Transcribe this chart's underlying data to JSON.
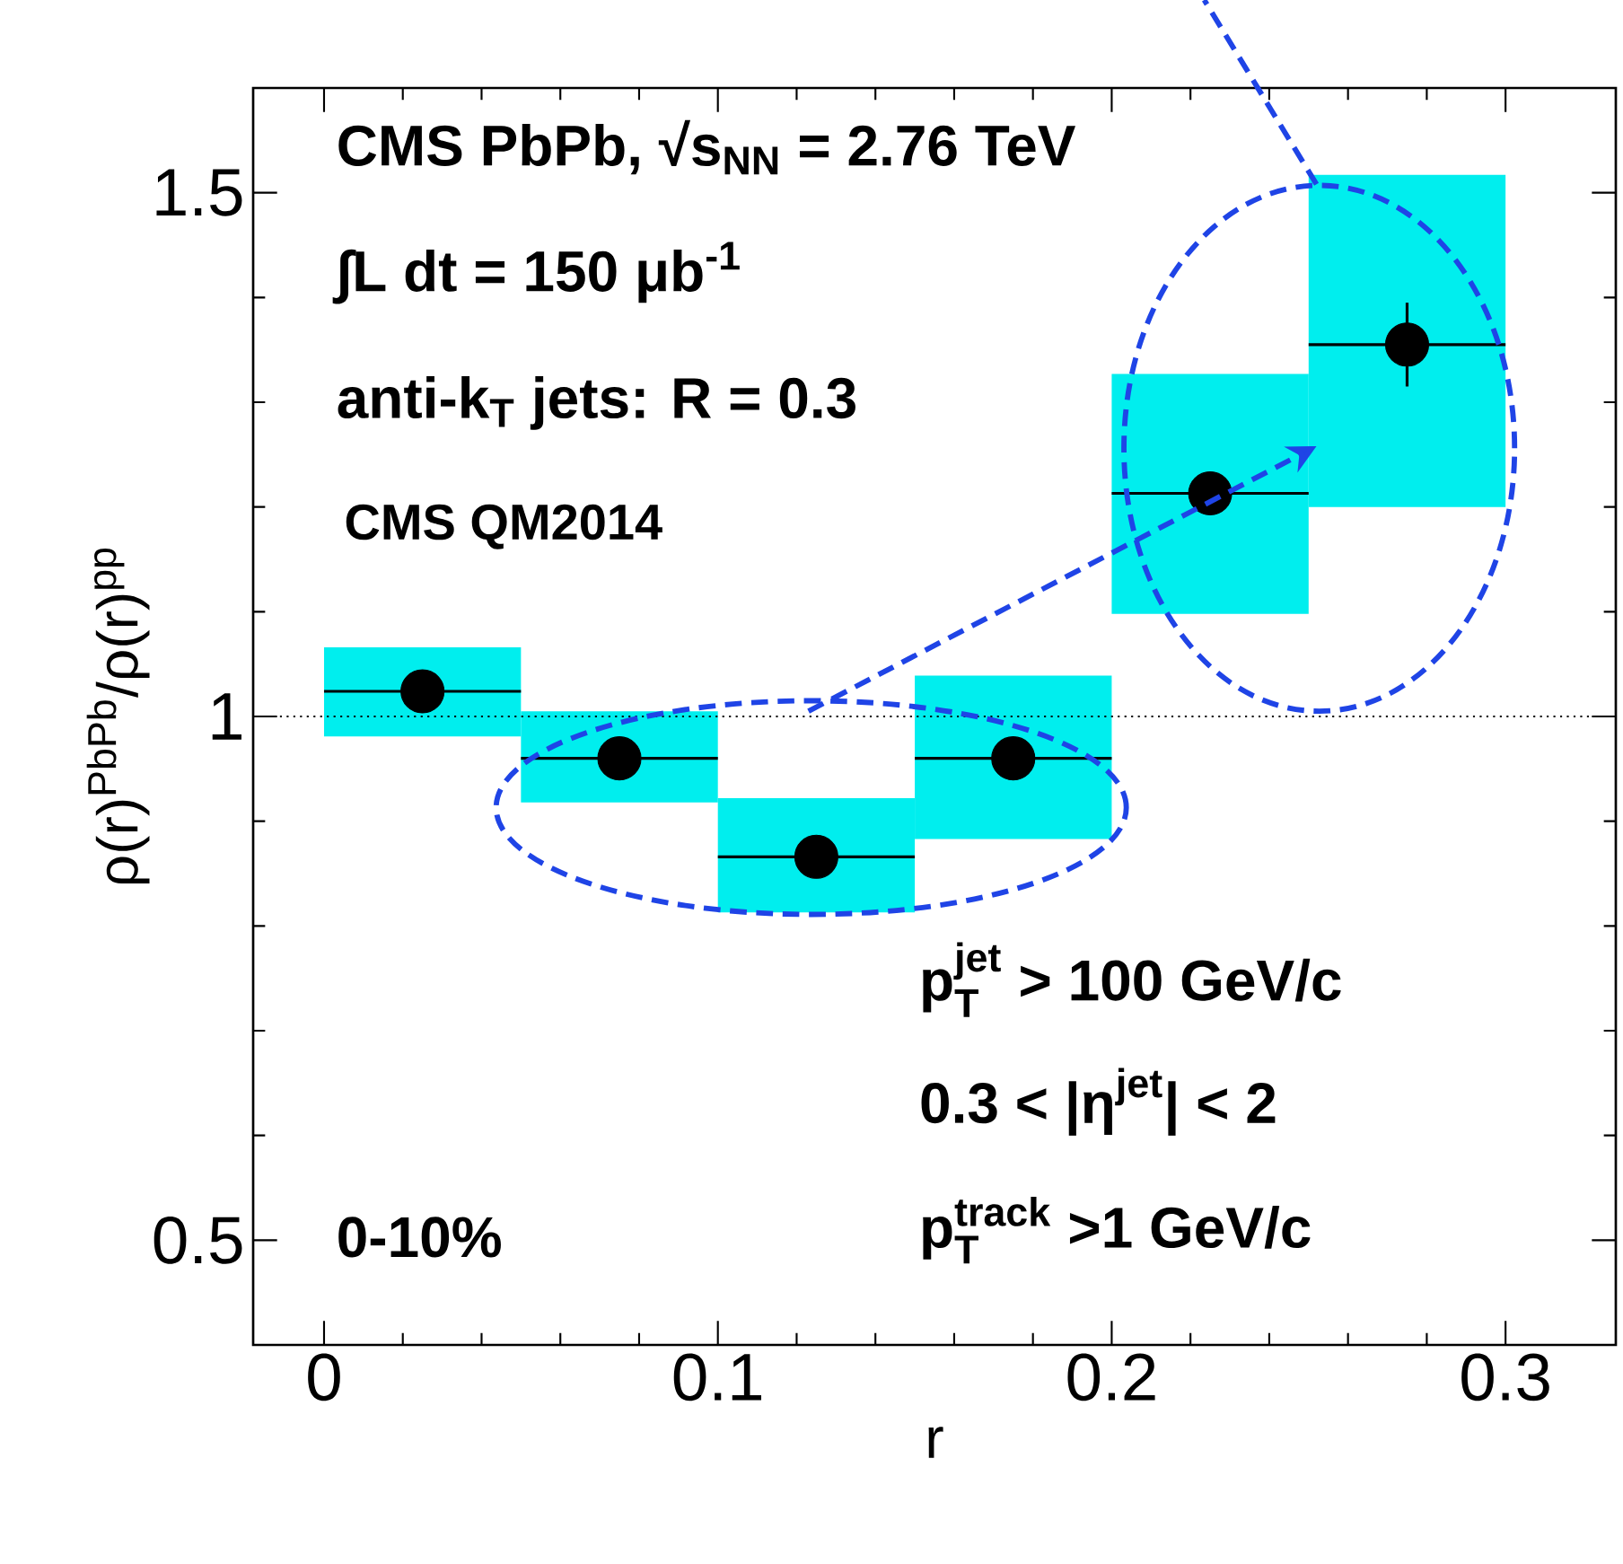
{
  "chart_data": {
    "type": "scatter",
    "xlabel": "r",
    "ylabel": "ρ(r)$^{PbPb}$/ρ(r)$^{pp}$",
    "xlim": [
      -0.018,
      0.328
    ],
    "ylim": [
      0.4,
      1.6
    ],
    "xticks": [
      0,
      0.1,
      0.2,
      0.3
    ],
    "yticks": [
      0.5,
      1,
      1.5
    ],
    "marker": "circle",
    "series": [
      {
        "type": "bar",
        "color": "#00eeee",
        "x": [
          0.025,
          0.075,
          0.125,
          0.175,
          0.225,
          0.275
        ],
        "base": [
          0.981,
          0.918,
          0.813,
          0.883,
          1.098,
          1.2
        ],
        "values": [
          0.085,
          0.087,
          0.109,
          0.156,
          0.229,
          0.317
        ]
      },
      {
        "color": "#000000",
        "x": [
          0.025,
          0.075,
          0.125,
          0.175,
          0.225,
          0.275
        ],
        "values": [
          1.024,
          0.96,
          0.866,
          0.96,
          1.213,
          1.355
        ],
        "xerrors": [
          0.025,
          0.025,
          0.025,
          0.025,
          0.025,
          0.025
        ],
        "errors": [
          null,
          null,
          null,
          null,
          null,
          0.04
        ]
      }
    ],
    "ref_lines": [
      {
        "axis": "y",
        "value": 1,
        "line_style": "dotted",
        "color": "#000000"
      }
    ],
    "annotations": [
      "CMS PbPb,  √s$_{NN}$ = 2.76 TeV",
      "∫L dt = 150 μb$^{-1}$",
      "anti-k$_{T}$ jets: R = 0.3",
      "CMS QM2014",
      "0-10%",
      "\\text{\\bfseries p}^{\\text{\\bfseries jet}}_{\\text{\\bfseries T}}\\text{\\bfseries\\ > 100 GeV/c}",
      "\\text{\\bfseries 0.3 < |η}^{\\text{\\bfseries jet}}\\text{\\bfseries | < 2}",
      "\\text{\\bfseries p}^{\\text{\\bfseries track}}_{\\text{\\bfseries T}}\\text{\\bfseries\\ >1 GeV/c}"
    ]
  }
}
